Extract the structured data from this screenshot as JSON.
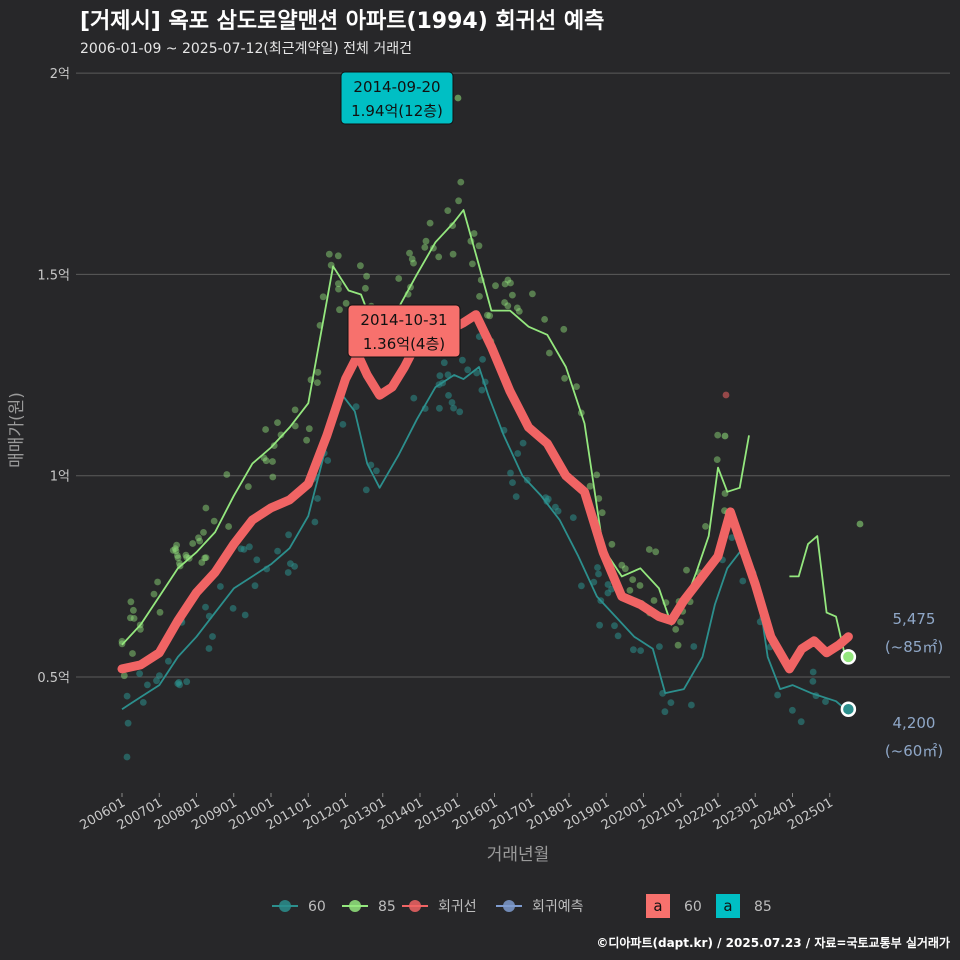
{
  "title": "[거제시] 옥포 삼도로얄맨션 아파트(1994) 회귀선 예측",
  "subtitle": "2006-01-09 ~ 2025-07-12(최근계약일) 전체 거래건",
  "caption": "©디아파트(dapt.kr) / 2025.07.23 / 자료=국토교통부 실거래가",
  "colors": {
    "background": "#272729",
    "s60": "#2c8f8d",
    "s85": "#94e77e",
    "regression": "#f06464",
    "forecast": "#7f9ccf",
    "callout60": "#f7716d",
    "callout85": "#00bfc4",
    "grid": "#5b5b5b"
  },
  "chart_data": {
    "type": "line",
    "xlabel": "거래년월",
    "ylabel": "매매가(원)",
    "x_range": [
      "2006-01",
      "2025-07"
    ],
    "ylim": [
      0.2,
      2.0
    ],
    "yticks": [
      {
        "value": 0.5,
        "label": "0.5억"
      },
      {
        "value": 1.0,
        "label": "1억"
      },
      {
        "value": 1.5,
        "label": "1.5억"
      },
      {
        "value": 2.0,
        "label": "2억"
      }
    ],
    "xticks": [
      "200601",
      "200701",
      "200801",
      "200901",
      "201001",
      "201101",
      "201201",
      "201301",
      "201401",
      "201501",
      "201601",
      "201701",
      "201801",
      "201901",
      "202001",
      "202101",
      "202201",
      "202301",
      "202401",
      "202501"
    ],
    "series": [
      {
        "name": "60",
        "points": [
          [
            "2006-01",
            0.42
          ],
          [
            "2006-07",
            0.45
          ],
          [
            "2007-01",
            0.48
          ],
          [
            "2007-07",
            0.55
          ],
          [
            "2008-01",
            0.6
          ],
          [
            "2008-07",
            0.66
          ],
          [
            "2009-01",
            0.72
          ],
          [
            "2009-07",
            0.75
          ],
          [
            "2010-01",
            0.78
          ],
          [
            "2010-07",
            0.82
          ],
          [
            "2011-01",
            0.9
          ],
          [
            "2011-07",
            1.08
          ],
          [
            "2011-12",
            1.2
          ],
          [
            "2012-04",
            1.16
          ],
          [
            "2012-08",
            1.03
          ],
          [
            "2012-12",
            0.97
          ],
          [
            "2013-06",
            1.05
          ],
          [
            "2013-12",
            1.14
          ],
          [
            "2014-06",
            1.22
          ],
          [
            "2014-12",
            1.25
          ],
          [
            "2015-03",
            1.24
          ],
          [
            "2015-08",
            1.27
          ],
          [
            "2015-11",
            1.2
          ],
          [
            "2016-04",
            1.1
          ],
          [
            "2016-10",
            1.0
          ],
          [
            "2017-04",
            0.95
          ],
          [
            "2017-10",
            0.89
          ],
          [
            "2018-04",
            0.8
          ],
          [
            "2018-10",
            0.7
          ],
          [
            "2019-04",
            0.65
          ],
          [
            "2019-10",
            0.6
          ],
          [
            "2020-04",
            0.57
          ],
          [
            "2020-08",
            0.46
          ],
          [
            "2021-02",
            0.47
          ],
          [
            "2021-08",
            0.55
          ],
          [
            "2021-12",
            0.68
          ],
          [
            "2022-04",
            0.77
          ],
          [
            "2022-09",
            0.82
          ],
          [
            "2023-01",
            0.76
          ],
          [
            "2023-05",
            0.55
          ],
          [
            "2023-09",
            0.47
          ],
          [
            "2024-01",
            0.48
          ],
          [
            "2024-07",
            0.46
          ],
          [
            "2025-03",
            0.44
          ],
          [
            "2025-06",
            0.42
          ]
        ]
      },
      {
        "name": "85",
        "points": [
          [
            "2006-01",
            0.58
          ],
          [
            "2006-07",
            0.63
          ],
          [
            "2007-01",
            0.7
          ],
          [
            "2007-07",
            0.77
          ],
          [
            "2008-01",
            0.81
          ],
          [
            "2008-07",
            0.86
          ],
          [
            "2009-01",
            0.95
          ],
          [
            "2009-07",
            1.03
          ],
          [
            "2010-01",
            1.07
          ],
          [
            "2010-07",
            1.12
          ],
          [
            "2011-01",
            1.18
          ],
          [
            "2011-05",
            1.35
          ],
          [
            "2011-09",
            1.52
          ],
          [
            "2012-02",
            1.46
          ],
          [
            "2012-06",
            1.45
          ],
          [
            "2012-10",
            1.37
          ],
          [
            "2013-02",
            1.36
          ],
          [
            "2013-07",
            1.43
          ],
          [
            "2013-12",
            1.5
          ],
          [
            "2014-06",
            1.58
          ],
          [
            "2014-12",
            1.63
          ],
          [
            "2015-03",
            1.66
          ],
          [
            "2015-07",
            1.55
          ],
          [
            "2015-12",
            1.41
          ],
          [
            "2016-06",
            1.41
          ],
          [
            "2016-12",
            1.37
          ],
          [
            "2017-06",
            1.35
          ],
          [
            "2017-12",
            1.27
          ],
          [
            "2018-06",
            1.13
          ],
          [
            "2018-12",
            0.82
          ],
          [
            "2019-06",
            0.75
          ],
          [
            "2019-12",
            0.77
          ],
          [
            "2020-06",
            0.72
          ],
          [
            "2020-10",
            0.63
          ],
          [
            "2021-02",
            0.68
          ],
          [
            "2021-06",
            0.76
          ],
          [
            "2021-10",
            0.85
          ],
          [
            "2022-01",
            1.02
          ],
          [
            "2022-04",
            0.96
          ],
          [
            "2022-08",
            0.97
          ],
          [
            "2022-11",
            1.1
          ]
        ]
      },
      {
        "name": "85_recent",
        "points": [
          [
            "2023-12",
            0.75
          ],
          [
            "2024-03",
            0.75
          ],
          [
            "2024-06",
            0.83
          ],
          [
            "2024-09",
            0.85
          ],
          [
            "2024-12",
            0.66
          ],
          [
            "2025-03",
            0.65
          ],
          [
            "2025-06",
            0.55
          ]
        ]
      },
      {
        "name": "회귀선",
        "points": [
          [
            "2006-01",
            0.52
          ],
          [
            "2006-07",
            0.53
          ],
          [
            "2007-01",
            0.56
          ],
          [
            "2007-07",
            0.64
          ],
          [
            "2008-01",
            0.71
          ],
          [
            "2008-07",
            0.76
          ],
          [
            "2009-01",
            0.83
          ],
          [
            "2009-07",
            0.89
          ],
          [
            "2010-01",
            0.92
          ],
          [
            "2010-07",
            0.94
          ],
          [
            "2011-01",
            0.98
          ],
          [
            "2011-07",
            1.1
          ],
          [
            "2012-01",
            1.24
          ],
          [
            "2012-05",
            1.3
          ],
          [
            "2012-08",
            1.25
          ],
          [
            "2012-12",
            1.2
          ],
          [
            "2013-04",
            1.22
          ],
          [
            "2013-08",
            1.27
          ],
          [
            "2013-12",
            1.33
          ],
          [
            "2014-04",
            1.36
          ],
          [
            "2014-10",
            1.36
          ],
          [
            "2015-03",
            1.38
          ],
          [
            "2015-07",
            1.4
          ],
          [
            "2015-12",
            1.32
          ],
          [
            "2016-06",
            1.21
          ],
          [
            "2016-12",
            1.12
          ],
          [
            "2017-06",
            1.08
          ],
          [
            "2017-12",
            1.0
          ],
          [
            "2018-06",
            0.96
          ],
          [
            "2018-12",
            0.81
          ],
          [
            "2019-06",
            0.7
          ],
          [
            "2019-12",
            0.68
          ],
          [
            "2020-06",
            0.65
          ],
          [
            "2020-10",
            0.64
          ],
          [
            "2021-02",
            0.69
          ],
          [
            "2021-08",
            0.75
          ],
          [
            "2022-01",
            0.8
          ],
          [
            "2022-05",
            0.91
          ],
          [
            "2022-09",
            0.82
          ],
          [
            "2023-01",
            0.73
          ],
          [
            "2023-06",
            0.6
          ],
          [
            "2023-12",
            0.52
          ],
          [
            "2024-04",
            0.57
          ],
          [
            "2024-08",
            0.59
          ],
          [
            "2024-12",
            0.56
          ],
          [
            "2025-04",
            0.58
          ],
          [
            "2025-07",
            0.6
          ]
        ]
      }
    ],
    "end_labels": [
      {
        "series": "85",
        "value": 0.55,
        "line1": "5,475",
        "line2": "(~85㎡)"
      },
      {
        "series": "60",
        "value": 0.42,
        "line1": "4,200",
        "line2": "(~60㎡)"
      }
    ],
    "callouts": [
      {
        "series": "85",
        "date": "2014-09-20",
        "line1": "2014-09-20",
        "line2": "1.94억(12층)",
        "price": 1.94
      },
      {
        "series": "60",
        "date": "2014-10-31",
        "line1": "2014-10-31",
        "line2": "1.36억(4층)",
        "price": 1.36
      }
    ],
    "legend": {
      "placement": "bottom",
      "items": [
        {
          "key": "60",
          "label": "60"
        },
        {
          "key": "85",
          "label": "85"
        },
        {
          "key": "regression",
          "label": "회귀선"
        },
        {
          "key": "forecast",
          "label": "회귀예측"
        }
      ],
      "fill_items": [
        {
          "glyph": "a",
          "label": "60"
        },
        {
          "glyph": "a",
          "label": "85"
        }
      ]
    },
    "scatter_note": "individual transactions shown as semi-transparent dots around series lines"
  }
}
